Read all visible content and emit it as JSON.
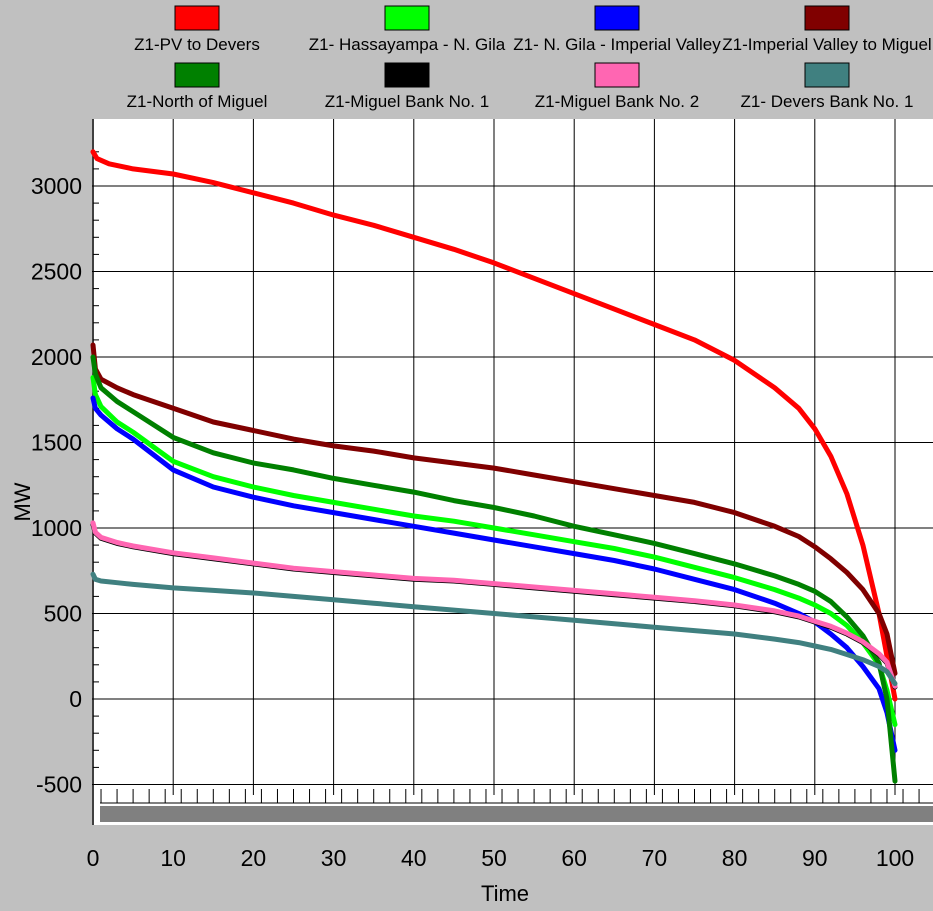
{
  "colors": {
    "background": "#c0c0c0",
    "plot_background": "#ffffff",
    "grid": "#000000",
    "scrollbar": "#808080"
  },
  "chart_data": {
    "type": "line",
    "xlabel": "Time",
    "ylabel": "MW",
    "xlim": [
      0,
      105
    ],
    "ylim": [
      -600,
      3350
    ],
    "x_ticks": [
      0,
      10,
      20,
      30,
      40,
      50,
      60,
      70,
      80,
      90,
      100
    ],
    "x_tick_labels": [
      "0",
      "10",
      "20",
      "30",
      "40",
      "50",
      "60",
      "70",
      "80",
      "90",
      "100"
    ],
    "y_ticks": [
      -500,
      0,
      500,
      1000,
      1500,
      2000,
      2500,
      3000
    ],
    "y_tick_labels": [
      "-500",
      "0",
      "500",
      "1000",
      "1500",
      "2000",
      "2500",
      "3000"
    ],
    "grid": true,
    "legend_position": "top",
    "series": [
      {
        "name": "Z1-PV to Devers",
        "color": "#ff0000",
        "points": [
          [
            0,
            3200
          ],
          [
            0.5,
            3160
          ],
          [
            2,
            3130
          ],
          [
            5,
            3100
          ],
          [
            10,
            3070
          ],
          [
            15,
            3020
          ],
          [
            20,
            2960
          ],
          [
            25,
            2900
          ],
          [
            30,
            2830
          ],
          [
            35,
            2770
          ],
          [
            40,
            2700
          ],
          [
            45,
            2630
          ],
          [
            50,
            2550
          ],
          [
            55,
            2460
          ],
          [
            60,
            2370
          ],
          [
            65,
            2280
          ],
          [
            70,
            2190
          ],
          [
            75,
            2100
          ],
          [
            80,
            1980
          ],
          [
            85,
            1820
          ],
          [
            88,
            1700
          ],
          [
            90,
            1580
          ],
          [
            92,
            1420
          ],
          [
            94,
            1200
          ],
          [
            96,
            900
          ],
          [
            98,
            500
          ],
          [
            99,
            250
          ],
          [
            100,
            0
          ]
        ]
      },
      {
        "name": "Z1- Hassayampa - N. Gila",
        "color": "#00ff00",
        "points": [
          [
            0,
            1880
          ],
          [
            0.3,
            1780
          ],
          [
            1,
            1710
          ],
          [
            3,
            1620
          ],
          [
            5,
            1560
          ],
          [
            10,
            1390
          ],
          [
            15,
            1300
          ],
          [
            20,
            1240
          ],
          [
            25,
            1190
          ],
          [
            30,
            1150
          ],
          [
            35,
            1110
          ],
          [
            40,
            1070
          ],
          [
            45,
            1040
          ],
          [
            50,
            1000
          ],
          [
            55,
            960
          ],
          [
            60,
            920
          ],
          [
            65,
            880
          ],
          [
            70,
            830
          ],
          [
            75,
            770
          ],
          [
            80,
            710
          ],
          [
            85,
            640
          ],
          [
            88,
            590
          ],
          [
            90,
            550
          ],
          [
            92,
            500
          ],
          [
            94,
            430
          ],
          [
            96,
            330
          ],
          [
            98,
            200
          ],
          [
            99,
            50
          ],
          [
            100,
            -150
          ]
        ]
      },
      {
        "name": "Z1- N. Gila - Imperial Valley",
        "color": "#0000ff",
        "points": [
          [
            0,
            1760
          ],
          [
            0.3,
            1700
          ],
          [
            1,
            1660
          ],
          [
            3,
            1580
          ],
          [
            5,
            1520
          ],
          [
            10,
            1340
          ],
          [
            15,
            1240
          ],
          [
            20,
            1180
          ],
          [
            25,
            1130
          ],
          [
            30,
            1090
          ],
          [
            35,
            1050
          ],
          [
            40,
            1010
          ],
          [
            45,
            970
          ],
          [
            50,
            930
          ],
          [
            55,
            890
          ],
          [
            60,
            850
          ],
          [
            65,
            810
          ],
          [
            70,
            760
          ],
          [
            75,
            700
          ],
          [
            80,
            640
          ],
          [
            85,
            560
          ],
          [
            88,
            500
          ],
          [
            90,
            450
          ],
          [
            92,
            380
          ],
          [
            94,
            300
          ],
          [
            96,
            190
          ],
          [
            98,
            60
          ],
          [
            99,
            -80
          ],
          [
            100,
            -300
          ]
        ]
      },
      {
        "name": "Z1-Imperial Valley to Miguel",
        "color": "#800000",
        "points": [
          [
            0,
            2070
          ],
          [
            0.3,
            1930
          ],
          [
            1,
            1870
          ],
          [
            3,
            1820
          ],
          [
            5,
            1780
          ],
          [
            10,
            1700
          ],
          [
            15,
            1620
          ],
          [
            20,
            1570
          ],
          [
            25,
            1520
          ],
          [
            30,
            1480
          ],
          [
            35,
            1450
          ],
          [
            40,
            1410
          ],
          [
            45,
            1380
          ],
          [
            50,
            1350
          ],
          [
            55,
            1310
          ],
          [
            60,
            1270
          ],
          [
            65,
            1230
          ],
          [
            70,
            1190
          ],
          [
            75,
            1150
          ],
          [
            80,
            1090
          ],
          [
            85,
            1010
          ],
          [
            88,
            950
          ],
          [
            90,
            890
          ],
          [
            92,
            820
          ],
          [
            94,
            740
          ],
          [
            96,
            640
          ],
          [
            98,
            500
          ],
          [
            99,
            380
          ],
          [
            100,
            150
          ]
        ]
      },
      {
        "name": "Z1-North of Miguel",
        "color": "#008000",
        "points": [
          [
            0,
            2000
          ],
          [
            0.3,
            1900
          ],
          [
            1,
            1820
          ],
          [
            3,
            1740
          ],
          [
            5,
            1680
          ],
          [
            10,
            1530
          ],
          [
            15,
            1440
          ],
          [
            20,
            1380
          ],
          [
            25,
            1340
          ],
          [
            30,
            1290
          ],
          [
            35,
            1250
          ],
          [
            40,
            1210
          ],
          [
            45,
            1160
          ],
          [
            50,
            1120
          ],
          [
            55,
            1070
          ],
          [
            60,
            1010
          ],
          [
            65,
            960
          ],
          [
            70,
            910
          ],
          [
            75,
            850
          ],
          [
            80,
            790
          ],
          [
            85,
            720
          ],
          [
            88,
            670
          ],
          [
            90,
            630
          ],
          [
            92,
            570
          ],
          [
            94,
            480
          ],
          [
            96,
            370
          ],
          [
            98,
            210
          ],
          [
            99,
            0
          ],
          [
            100,
            -480
          ]
        ]
      },
      {
        "name": "Z1-Miguel Bank No. 1",
        "color": "#000000",
        "points": [
          [
            0,
            1020
          ],
          [
            0.3,
            970
          ],
          [
            1,
            940
          ],
          [
            3,
            910
          ],
          [
            5,
            890
          ],
          [
            10,
            850
          ],
          [
            15,
            820
          ],
          [
            20,
            790
          ],
          [
            25,
            760
          ],
          [
            30,
            740
          ],
          [
            35,
            720
          ],
          [
            40,
            700
          ],
          [
            45,
            690
          ],
          [
            50,
            670
          ],
          [
            55,
            650
          ],
          [
            60,
            630
          ],
          [
            65,
            610
          ],
          [
            70,
            590
          ],
          [
            75,
            570
          ],
          [
            80,
            545
          ],
          [
            85,
            510
          ],
          [
            88,
            480
          ],
          [
            90,
            450
          ],
          [
            92,
            420
          ],
          [
            94,
            380
          ],
          [
            96,
            330
          ],
          [
            98,
            260
          ],
          [
            99,
            210
          ],
          [
            100,
            70
          ]
        ]
      },
      {
        "name": "Z1-Miguel Bank No. 2",
        "color": "#ff66b2",
        "points": [
          [
            0,
            1030
          ],
          [
            0.3,
            975
          ],
          [
            1,
            945
          ],
          [
            3,
            915
          ],
          [
            5,
            895
          ],
          [
            10,
            855
          ],
          [
            15,
            825
          ],
          [
            20,
            795
          ],
          [
            25,
            765
          ],
          [
            30,
            745
          ],
          [
            35,
            725
          ],
          [
            40,
            705
          ],
          [
            45,
            695
          ],
          [
            50,
            675
          ],
          [
            55,
            655
          ],
          [
            60,
            635
          ],
          [
            65,
            615
          ],
          [
            70,
            595
          ],
          [
            75,
            575
          ],
          [
            80,
            550
          ],
          [
            85,
            515
          ],
          [
            88,
            485
          ],
          [
            90,
            455
          ],
          [
            92,
            425
          ],
          [
            94,
            385
          ],
          [
            96,
            335
          ],
          [
            98,
            265
          ],
          [
            99,
            215
          ],
          [
            100,
            75
          ]
        ]
      },
      {
        "name": "Z1- Devers Bank No. 1",
        "color": "#408080",
        "points": [
          [
            0,
            730
          ],
          [
            0.3,
            700
          ],
          [
            1,
            690
          ],
          [
            3,
            680
          ],
          [
            5,
            670
          ],
          [
            10,
            650
          ],
          [
            15,
            635
          ],
          [
            20,
            620
          ],
          [
            25,
            600
          ],
          [
            30,
            580
          ],
          [
            35,
            560
          ],
          [
            40,
            540
          ],
          [
            45,
            520
          ],
          [
            50,
            500
          ],
          [
            55,
            480
          ],
          [
            60,
            460
          ],
          [
            65,
            440
          ],
          [
            70,
            420
          ],
          [
            75,
            400
          ],
          [
            80,
            380
          ],
          [
            85,
            350
          ],
          [
            88,
            330
          ],
          [
            90,
            310
          ],
          [
            92,
            290
          ],
          [
            94,
            260
          ],
          [
            96,
            230
          ],
          [
            98,
            190
          ],
          [
            99,
            160
          ],
          [
            100,
            90
          ]
        ]
      }
    ]
  }
}
